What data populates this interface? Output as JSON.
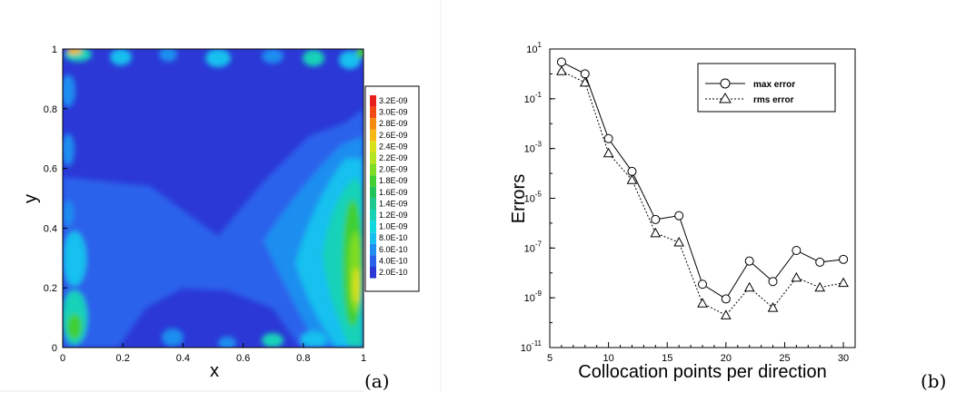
{
  "chart_data": [
    {
      "type": "heatmap",
      "title": "",
      "xlabel": "x",
      "ylabel": "y",
      "xlim": [
        0,
        1
      ],
      "ylim": [
        0,
        1
      ],
      "xticks": [
        "0",
        "0.2",
        "0.4",
        "0.6",
        "0.8",
        "1"
      ],
      "yticks": [
        "0",
        "0.2",
        "0.4",
        "0.6",
        "0.8",
        "1"
      ],
      "colorbar_labels": [
        "3.2E-09",
        "3.0E-09",
        "2.8E-09",
        "2.6E-09",
        "2.4E-09",
        "2.2E-09",
        "2.0E-09",
        "1.8E-09",
        "1.6E-09",
        "1.4E-09",
        "1.2E-09",
        "1.0E-09",
        "8.0E-10",
        "6.0E-10",
        "4.0E-10",
        "2.0E-10"
      ],
      "colorbar_colors": [
        "#e8201c",
        "#f24a12",
        "#f58a10",
        "#f7b817",
        "#d9e01c",
        "#b4e520",
        "#7fdc24",
        "#3fcf30",
        "#22c35a",
        "#1fc88e",
        "#18d2b8",
        "#10d8de",
        "#15c0ef",
        "#1f8ef0",
        "#2a62eb",
        "#2b38d6"
      ],
      "panel_label": "(a)"
    },
    {
      "type": "line",
      "title": "",
      "xlabel": "Collocation points per direction",
      "ylabel": "Errors",
      "xlim": [
        5,
        31
      ],
      "ylim_log10": [
        -11,
        1
      ],
      "y_scale": "log",
      "xticks": [
        5,
        10,
        15,
        20,
        25,
        30
      ],
      "yticks": [
        {
          "exp": 1,
          "base": "10",
          "sup": "1"
        },
        {
          "exp": -1,
          "base": "10",
          "sup": "-1"
        },
        {
          "exp": -3,
          "base": "10",
          "sup": "-3"
        },
        {
          "exp": -5,
          "base": "10",
          "sup": "-5"
        },
        {
          "exp": -7,
          "base": "10",
          "sup": "-7"
        },
        {
          "exp": -9,
          "base": "10",
          "sup": "-9"
        },
        {
          "exp": -11,
          "base": "10",
          "sup": "-11"
        }
      ],
      "legend_position": "top-right",
      "series": [
        {
          "name": "max error",
          "marker": "circle",
          "line": "solid",
          "x": [
            6,
            8,
            10,
            12,
            14,
            16,
            18,
            20,
            22,
            24,
            26,
            28,
            30
          ],
          "y": [
            3.0,
            1.0,
            0.0025,
            0.00012,
            1.4e-06,
            2e-06,
            3.5e-09,
            9e-10,
            3e-08,
            4.5e-09,
            8e-08,
            2.7e-08,
            3.5e-08
          ]
        },
        {
          "name": "rms error",
          "marker": "triangle",
          "line": "dotted",
          "x": [
            6,
            8,
            10,
            12,
            14,
            16,
            18,
            20,
            22,
            24,
            26,
            28,
            30
          ],
          "y": [
            1.3,
            0.45,
            0.00065,
            5.5e-05,
            4e-07,
            1.7e-07,
            6e-10,
            2e-10,
            2.6e-09,
            4e-10,
            6.5e-09,
            2.6e-09,
            4e-09
          ]
        }
      ],
      "panel_label": "(b)"
    }
  ]
}
